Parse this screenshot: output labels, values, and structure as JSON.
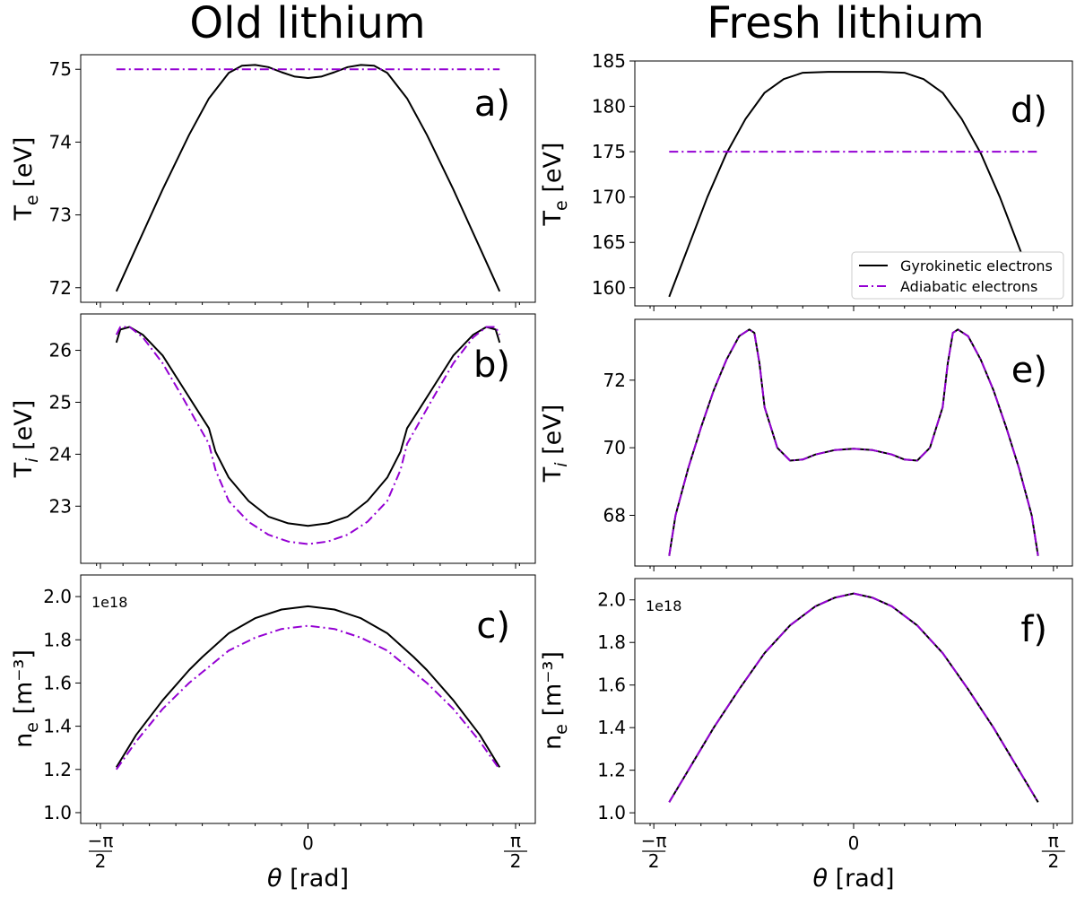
{
  "column_titles": [
    "Old lithium",
    "Fresh lithium"
  ],
  "colors": {
    "gyrokinetic": "#000000",
    "adiabatic": "#9400D3"
  },
  "x_tick_labels": {
    "left": {
      "num": "−π",
      "den": "2"
    },
    "center": "0",
    "right": {
      "num": "π",
      "den": "2"
    }
  },
  "xlabel": "θ [rad]",
  "legend": [
    "Gyrokinetic electrons",
    "Adiabatic electrons"
  ],
  "chart_data": [
    {
      "type": "line",
      "panel_label": "a)",
      "column": "Old lithium",
      "ylabel": "Te [eV]",
      "xlim": [
        -1.72,
        1.72
      ],
      "ylim": [
        71.8,
        75.2
      ],
      "yticks": [
        72,
        73,
        74,
        75
      ],
      "offset_text": "",
      "series": [
        {
          "name": "Gyrokinetic electrons",
          "style": "solid",
          "x": [
            -1.45,
            -1.3,
            -1.1,
            -0.9,
            -0.75,
            -0.6,
            -0.5,
            -0.4,
            -0.3,
            -0.2,
            -0.1,
            0,
            0.1,
            0.2,
            0.3,
            0.4,
            0.5,
            0.6,
            0.75,
            0.9,
            1.1,
            1.3,
            1.45
          ],
          "y": [
            71.95,
            72.55,
            73.35,
            74.1,
            74.6,
            74.95,
            75.05,
            75.06,
            75.03,
            74.96,
            74.9,
            74.88,
            74.9,
            74.96,
            75.03,
            75.06,
            75.05,
            74.95,
            74.6,
            74.1,
            73.35,
            72.55,
            71.95
          ]
        },
        {
          "name": "Adiabatic electrons",
          "style": "dashdot",
          "x": [
            -1.45,
            1.45
          ],
          "y": [
            75.0,
            75.0
          ]
        }
      ]
    },
    {
      "type": "line",
      "panel_label": "b)",
      "column": "Old lithium",
      "ylabel": "Ti [eV]",
      "xlim": [
        -1.72,
        1.72
      ],
      "ylim": [
        21.9,
        26.7
      ],
      "yticks": [
        23,
        24,
        25,
        26
      ],
      "offset_text": "",
      "series": [
        {
          "name": "Gyrokinetic electrons",
          "style": "solid",
          "x": [
            -1.45,
            -1.42,
            -1.35,
            -1.25,
            -1.1,
            -0.95,
            -0.85,
            -0.75,
            -0.7,
            -0.6,
            -0.45,
            -0.3,
            -0.15,
            0,
            0.15,
            0.3,
            0.45,
            0.6,
            0.7,
            0.75,
            0.85,
            0.95,
            1.1,
            1.25,
            1.35,
            1.42,
            1.45
          ],
          "y": [
            26.15,
            26.4,
            26.45,
            26.3,
            25.9,
            25.3,
            24.9,
            24.5,
            24.05,
            23.55,
            23.1,
            22.8,
            22.67,
            22.62,
            22.67,
            22.8,
            23.1,
            23.55,
            24.05,
            24.5,
            24.9,
            25.3,
            25.9,
            26.3,
            26.45,
            26.4,
            26.15
          ]
        },
        {
          "name": "Adiabatic electrons",
          "style": "dashdot",
          "x": [
            -1.45,
            -1.42,
            -1.35,
            -1.25,
            -1.1,
            -0.95,
            -0.85,
            -0.75,
            -0.7,
            -0.6,
            -0.45,
            -0.3,
            -0.15,
            0,
            0.15,
            0.3,
            0.45,
            0.6,
            0.7,
            0.75,
            0.85,
            0.95,
            1.1,
            1.25,
            1.35,
            1.42,
            1.45
          ],
          "y": [
            26.3,
            26.45,
            26.45,
            26.25,
            25.75,
            25.1,
            24.65,
            24.2,
            23.7,
            23.1,
            22.7,
            22.45,
            22.32,
            22.27,
            22.32,
            22.45,
            22.7,
            23.1,
            23.7,
            24.2,
            24.65,
            25.1,
            25.75,
            26.25,
            26.45,
            26.45,
            26.3
          ]
        }
      ]
    },
    {
      "type": "line",
      "panel_label": "c)",
      "column": "Old lithium",
      "ylabel": "ne [m⁻³]",
      "xlim": [
        -1.72,
        1.72
      ],
      "ylim": [
        0.95,
        2.1
      ],
      "yticks": [
        1.0,
        1.2,
        1.4,
        1.6,
        1.8,
        2.0
      ],
      "offset_text": "1e18",
      "series": [
        {
          "name": "Gyrokinetic electrons",
          "style": "solid",
          "x": [
            -1.45,
            -1.3,
            -1.1,
            -0.9,
            -0.8,
            -0.6,
            -0.4,
            -0.2,
            0,
            0.2,
            0.4,
            0.6,
            0.8,
            0.9,
            1.1,
            1.3,
            1.45
          ],
          "y": [
            1.21,
            1.36,
            1.52,
            1.66,
            1.72,
            1.83,
            1.9,
            1.94,
            1.955,
            1.94,
            1.9,
            1.83,
            1.72,
            1.66,
            1.52,
            1.36,
            1.21
          ]
        },
        {
          "name": "Adiabatic electrons",
          "style": "dashdot",
          "x": [
            -1.45,
            -1.3,
            -1.1,
            -0.9,
            -0.8,
            -0.6,
            -0.4,
            -0.2,
            0,
            0.2,
            0.4,
            0.6,
            0.8,
            0.9,
            1.1,
            1.3,
            1.45
          ],
          "y": [
            1.2,
            1.33,
            1.48,
            1.6,
            1.65,
            1.75,
            1.81,
            1.85,
            1.865,
            1.85,
            1.81,
            1.75,
            1.65,
            1.6,
            1.48,
            1.33,
            1.2
          ]
        }
      ]
    },
    {
      "type": "line",
      "panel_label": "d)",
      "column": "Fresh lithium",
      "ylabel": "Te [eV]",
      "xlim": [
        -1.72,
        1.72
      ],
      "ylim": [
        158,
        185
      ],
      "yticks": [
        160,
        165,
        170,
        175,
        180,
        185
      ],
      "offset_text": "",
      "series": [
        {
          "name": "Gyrokinetic electrons",
          "style": "solid",
          "x": [
            -1.45,
            -1.3,
            -1.15,
            -1.0,
            -0.85,
            -0.7,
            -0.55,
            -0.4,
            -0.2,
            0,
            0.2,
            0.4,
            0.55,
            0.7,
            0.85,
            1.0,
            1.15,
            1.3,
            1.45
          ],
          "y": [
            159,
            164.5,
            170,
            174.8,
            178.6,
            181.5,
            183.0,
            183.7,
            183.8,
            183.8,
            183.8,
            183.7,
            183.0,
            181.5,
            178.6,
            174.8,
            170,
            164.5,
            159
          ]
        },
        {
          "name": "Adiabatic electrons",
          "style": "dashdot",
          "x": [
            -1.45,
            1.45
          ],
          "y": [
            175,
            175
          ]
        }
      ]
    },
    {
      "type": "line",
      "panel_label": "e)",
      "column": "Fresh lithium",
      "ylabel": "Ti [eV]",
      "xlim": [
        -1.72,
        1.72
      ],
      "ylim": [
        66.5,
        73.8
      ],
      "yticks": [
        68,
        70,
        72
      ],
      "offset_text": "",
      "series": [
        {
          "name": "Gyrokinetic electrons",
          "style": "solid",
          "x": [
            -1.45,
            -1.4,
            -1.3,
            -1.2,
            -1.1,
            -1.0,
            -0.9,
            -0.82,
            -0.78,
            -0.74,
            -0.7,
            -0.6,
            -0.5,
            -0.4,
            -0.3,
            -0.15,
            0,
            0.15,
            0.3,
            0.4,
            0.5,
            0.6,
            0.7,
            0.74,
            0.78,
            0.82,
            0.9,
            1.0,
            1.1,
            1.2,
            1.3,
            1.4,
            1.45
          ],
          "y": [
            66.8,
            68.0,
            69.4,
            70.6,
            71.7,
            72.6,
            73.3,
            73.5,
            73.4,
            72.5,
            71.2,
            70.0,
            69.62,
            69.65,
            69.8,
            69.93,
            69.97,
            69.93,
            69.8,
            69.65,
            69.62,
            70.0,
            71.2,
            72.5,
            73.4,
            73.5,
            73.3,
            72.6,
            71.7,
            70.6,
            69.4,
            68.0,
            66.8
          ]
        },
        {
          "name": "Adiabatic electrons",
          "style": "dashdot",
          "x": [
            -1.45,
            -1.4,
            -1.3,
            -1.2,
            -1.1,
            -1.0,
            -0.9,
            -0.82,
            -0.78,
            -0.74,
            -0.7,
            -0.6,
            -0.5,
            -0.4,
            -0.3,
            -0.15,
            0,
            0.15,
            0.3,
            0.4,
            0.5,
            0.6,
            0.7,
            0.74,
            0.78,
            0.82,
            0.9,
            1.0,
            1.1,
            1.2,
            1.3,
            1.4,
            1.45
          ],
          "y": [
            66.8,
            68.0,
            69.4,
            70.6,
            71.7,
            72.6,
            73.3,
            73.5,
            73.4,
            72.5,
            71.2,
            70.0,
            69.62,
            69.65,
            69.8,
            69.93,
            69.97,
            69.93,
            69.8,
            69.65,
            69.62,
            70.0,
            71.2,
            72.5,
            73.4,
            73.5,
            73.3,
            72.6,
            71.7,
            70.6,
            69.4,
            68.0,
            66.8
          ]
        }
      ]
    },
    {
      "type": "line",
      "panel_label": "f)",
      "column": "Fresh lithium",
      "ylabel": "ne [m⁻³]",
      "xlim": [
        -1.72,
        1.72
      ],
      "ylim": [
        0.95,
        2.1
      ],
      "yticks": [
        1.0,
        1.2,
        1.4,
        1.6,
        1.8,
        2.0
      ],
      "offset_text": "1e18",
      "series": [
        {
          "name": "Gyrokinetic electrons",
          "style": "solid",
          "x": [
            -1.45,
            -1.3,
            -1.1,
            -0.9,
            -0.7,
            -0.5,
            -0.3,
            -0.15,
            0,
            0.15,
            0.3,
            0.5,
            0.7,
            0.9,
            1.1,
            1.3,
            1.45
          ],
          "y": [
            1.05,
            1.2,
            1.4,
            1.58,
            1.75,
            1.88,
            1.97,
            2.01,
            2.03,
            2.01,
            1.97,
            1.88,
            1.75,
            1.58,
            1.4,
            1.2,
            1.05
          ]
        },
        {
          "name": "Adiabatic electrons",
          "style": "dashdot",
          "x": [
            -1.45,
            -1.3,
            -1.1,
            -0.9,
            -0.7,
            -0.5,
            -0.3,
            -0.15,
            0,
            0.15,
            0.3,
            0.5,
            0.7,
            0.9,
            1.1,
            1.3,
            1.45
          ],
          "y": [
            1.05,
            1.2,
            1.4,
            1.58,
            1.75,
            1.88,
            1.97,
            2.01,
            2.03,
            2.01,
            1.97,
            1.88,
            1.75,
            1.58,
            1.4,
            1.2,
            1.05
          ]
        }
      ]
    }
  ]
}
